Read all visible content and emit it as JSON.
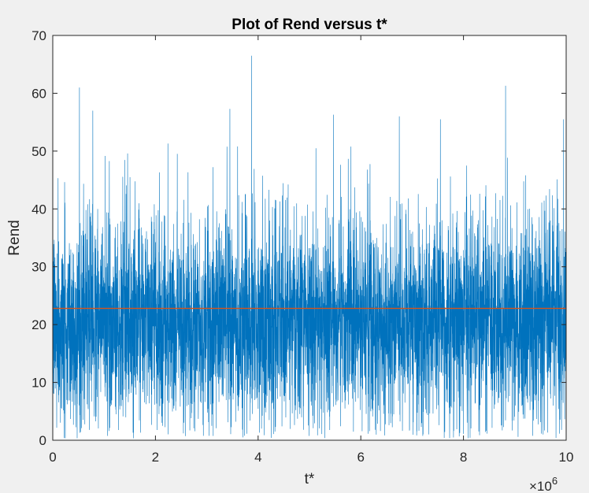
{
  "window": {
    "background": "#f0f0f0"
  },
  "chart_data": {
    "type": "line",
    "title": "Plot of Rend versus t*",
    "xlabel": "t*",
    "ylabel": "Rend",
    "xlim": [
      0,
      10
    ],
    "ylim": [
      0,
      70
    ],
    "x_exponent_label": "×10",
    "x_exponent_power": "6",
    "x_ticks": [
      0,
      2,
      4,
      6,
      8,
      10
    ],
    "y_ticks": [
      0,
      10,
      20,
      30,
      40,
      50,
      60,
      70
    ],
    "x_tick_labels": [
      "0",
      "2",
      "4",
      "6",
      "8",
      "10"
    ],
    "y_tick_labels": [
      "0",
      "10",
      "20",
      "30",
      "40",
      "50",
      "60",
      "70"
    ],
    "grid": false,
    "series": [
      {
        "color": "#0072bd",
        "style": "dense noisy line, roughly 0–50 with occasional spikes",
        "peaks": [
          {
            "x": 0.52,
            "y": 61
          },
          {
            "x": 0.78,
            "y": 57
          },
          {
            "x": 3.45,
            "y": 57.3
          },
          {
            "x": 3.87,
            "y": 66.5
          },
          {
            "x": 5.47,
            "y": 56.3
          },
          {
            "x": 6.75,
            "y": 56
          },
          {
            "x": 7.55,
            "y": 55.5
          },
          {
            "x": 8.82,
            "y": 61.3
          },
          {
            "x": 9.95,
            "y": 55.5
          }
        ],
        "mean_level": 22,
        "min_level": 0
      },
      {
        "color": "#d95319",
        "style": "horizontal constant line",
        "value": 22.8
      }
    ]
  }
}
